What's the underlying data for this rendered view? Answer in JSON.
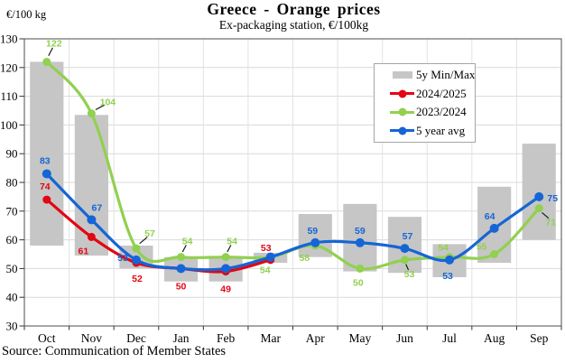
{
  "header": {
    "title": "Greece - Orange prices",
    "subtitle": "Ex-packaging station, €/100kg",
    "y_unit": "€/100 kg"
  },
  "source": "Source: Communication of Member States",
  "colors": {
    "range_bar": "#c6c6c6",
    "red": "#e30613",
    "green": "#92d050",
    "blue": "#1565d6",
    "gridline_h": "#d9d9d9",
    "gridline_v": "#e2e2e2",
    "frame": "#4d4d4d",
    "leader": "#1a1a1a"
  },
  "legend": {
    "items": [
      {
        "label": "5y Min/Max",
        "type": "bar",
        "color": "#c6c6c6"
      },
      {
        "label": "2024/2025",
        "type": "line",
        "color": "#e30613"
      },
      {
        "label": "2023/2024",
        "type": "line",
        "color": "#92d050"
      },
      {
        "label": "5 year avg",
        "type": "line",
        "color": "#1565d6"
      }
    ]
  },
  "chart_data": {
    "type": "line",
    "title": "Greece - Orange prices",
    "subtitle": "Ex-packaging station, €/100kg",
    "ylabel": "€/100 kg",
    "categories": [
      "Oct",
      "Nov",
      "Dec",
      "Jan",
      "Feb",
      "Mar",
      "Apr",
      "May",
      "Jun",
      "Jul",
      "Aug",
      "Sep"
    ],
    "ylim": [
      30,
      130
    ],
    "ytick_step": 10,
    "grid": true,
    "legend_position": "upper-right-inside",
    "range_series": {
      "name": "5y Min/Max",
      "min": [
        58,
        54.5,
        50,
        45.5,
        45.5,
        52,
        54,
        49,
        48.5,
        47,
        52,
        60
      ],
      "max": [
        122,
        103.5,
        58,
        54,
        54,
        55.5,
        69,
        72.5,
        68,
        58.5,
        78.5,
        93.5
      ]
    },
    "series": [
      {
        "name": "2023/2024",
        "color": "#92d050",
        "values": [
          122,
          104,
          57,
          54,
          54,
          54,
          58,
          50,
          53,
          54,
          55,
          71
        ],
        "value_labels": [
          {
            "i": 0,
            "dx": 8,
            "dy": -21,
            "leader": true
          },
          {
            "i": 1,
            "dx": 18,
            "dy": -13,
            "leader": true
          },
          {
            "i": 2,
            "dx": 15,
            "dy": -17,
            "leader": true
          },
          {
            "i": 3,
            "dx": 7,
            "dy": -18,
            "leader": true
          },
          {
            "i": 4,
            "dx": 7,
            "dy": -18,
            "leader": true
          },
          {
            "i": 5,
            "dx": -6,
            "dy": 14,
            "leader": false
          },
          {
            "i": 6,
            "dx": -12,
            "dy": 13,
            "leader": false
          },
          {
            "i": 7,
            "dx": -2,
            "dy": 15,
            "leader": false
          },
          {
            "i": 8,
            "dx": 5,
            "dy": 15,
            "leader": true
          },
          {
            "i": 9,
            "dx": -7,
            "dy": -11,
            "leader": false
          },
          {
            "i": 10,
            "dx": -14,
            "dy": -9,
            "leader": false
          },
          {
            "i": 11,
            "dx": 13,
            "dy": 15,
            "leader": true
          }
        ]
      },
      {
        "name": "2024/2025",
        "color": "#e30613",
        "values": [
          74,
          61,
          52,
          50,
          49,
          53,
          null,
          null,
          null,
          null,
          null,
          null
        ],
        "value_labels": [
          {
            "i": 0,
            "dx": -2,
            "dy": -15,
            "leader": false
          },
          {
            "i": 1,
            "dx": -9,
            "dy": 15,
            "leader": false
          },
          {
            "i": 2,
            "dx": 1,
            "dy": 17,
            "leader": false
          },
          {
            "i": 3,
            "dx": 0,
            "dy": 19,
            "leader": false
          },
          {
            "i": 4,
            "dx": 0,
            "dy": 19,
            "leader": false
          },
          {
            "i": 5,
            "dx": -5,
            "dy": -14,
            "leader": false
          }
        ]
      },
      {
        "name": "5 year avg",
        "color": "#1565d6",
        "values": [
          83,
          67,
          53,
          50,
          50,
          54,
          59,
          59,
          57,
          53,
          64,
          75
        ],
        "value_labels": [
          {
            "i": 0,
            "dx": -2,
            "dy": -15,
            "leader": false
          },
          {
            "i": 1,
            "dx": 6,
            "dy": -14,
            "leader": false
          },
          {
            "i": 2,
            "dx": -15,
            "dy": -3,
            "leader": false
          },
          {
            "i": 6,
            "dx": -3,
            "dy": -14,
            "leader": false
          },
          {
            "i": 7,
            "dx": 0,
            "dy": -14,
            "leader": false
          },
          {
            "i": 8,
            "dx": 3,
            "dy": -14,
            "leader": false
          },
          {
            "i": 9,
            "dx": -2,
            "dy": 17,
            "leader": false
          },
          {
            "i": 10,
            "dx": -5,
            "dy": -14,
            "leader": false
          },
          {
            "i": 11,
            "dx": 15,
            "dy": 1,
            "leader": false
          }
        ]
      }
    ]
  }
}
